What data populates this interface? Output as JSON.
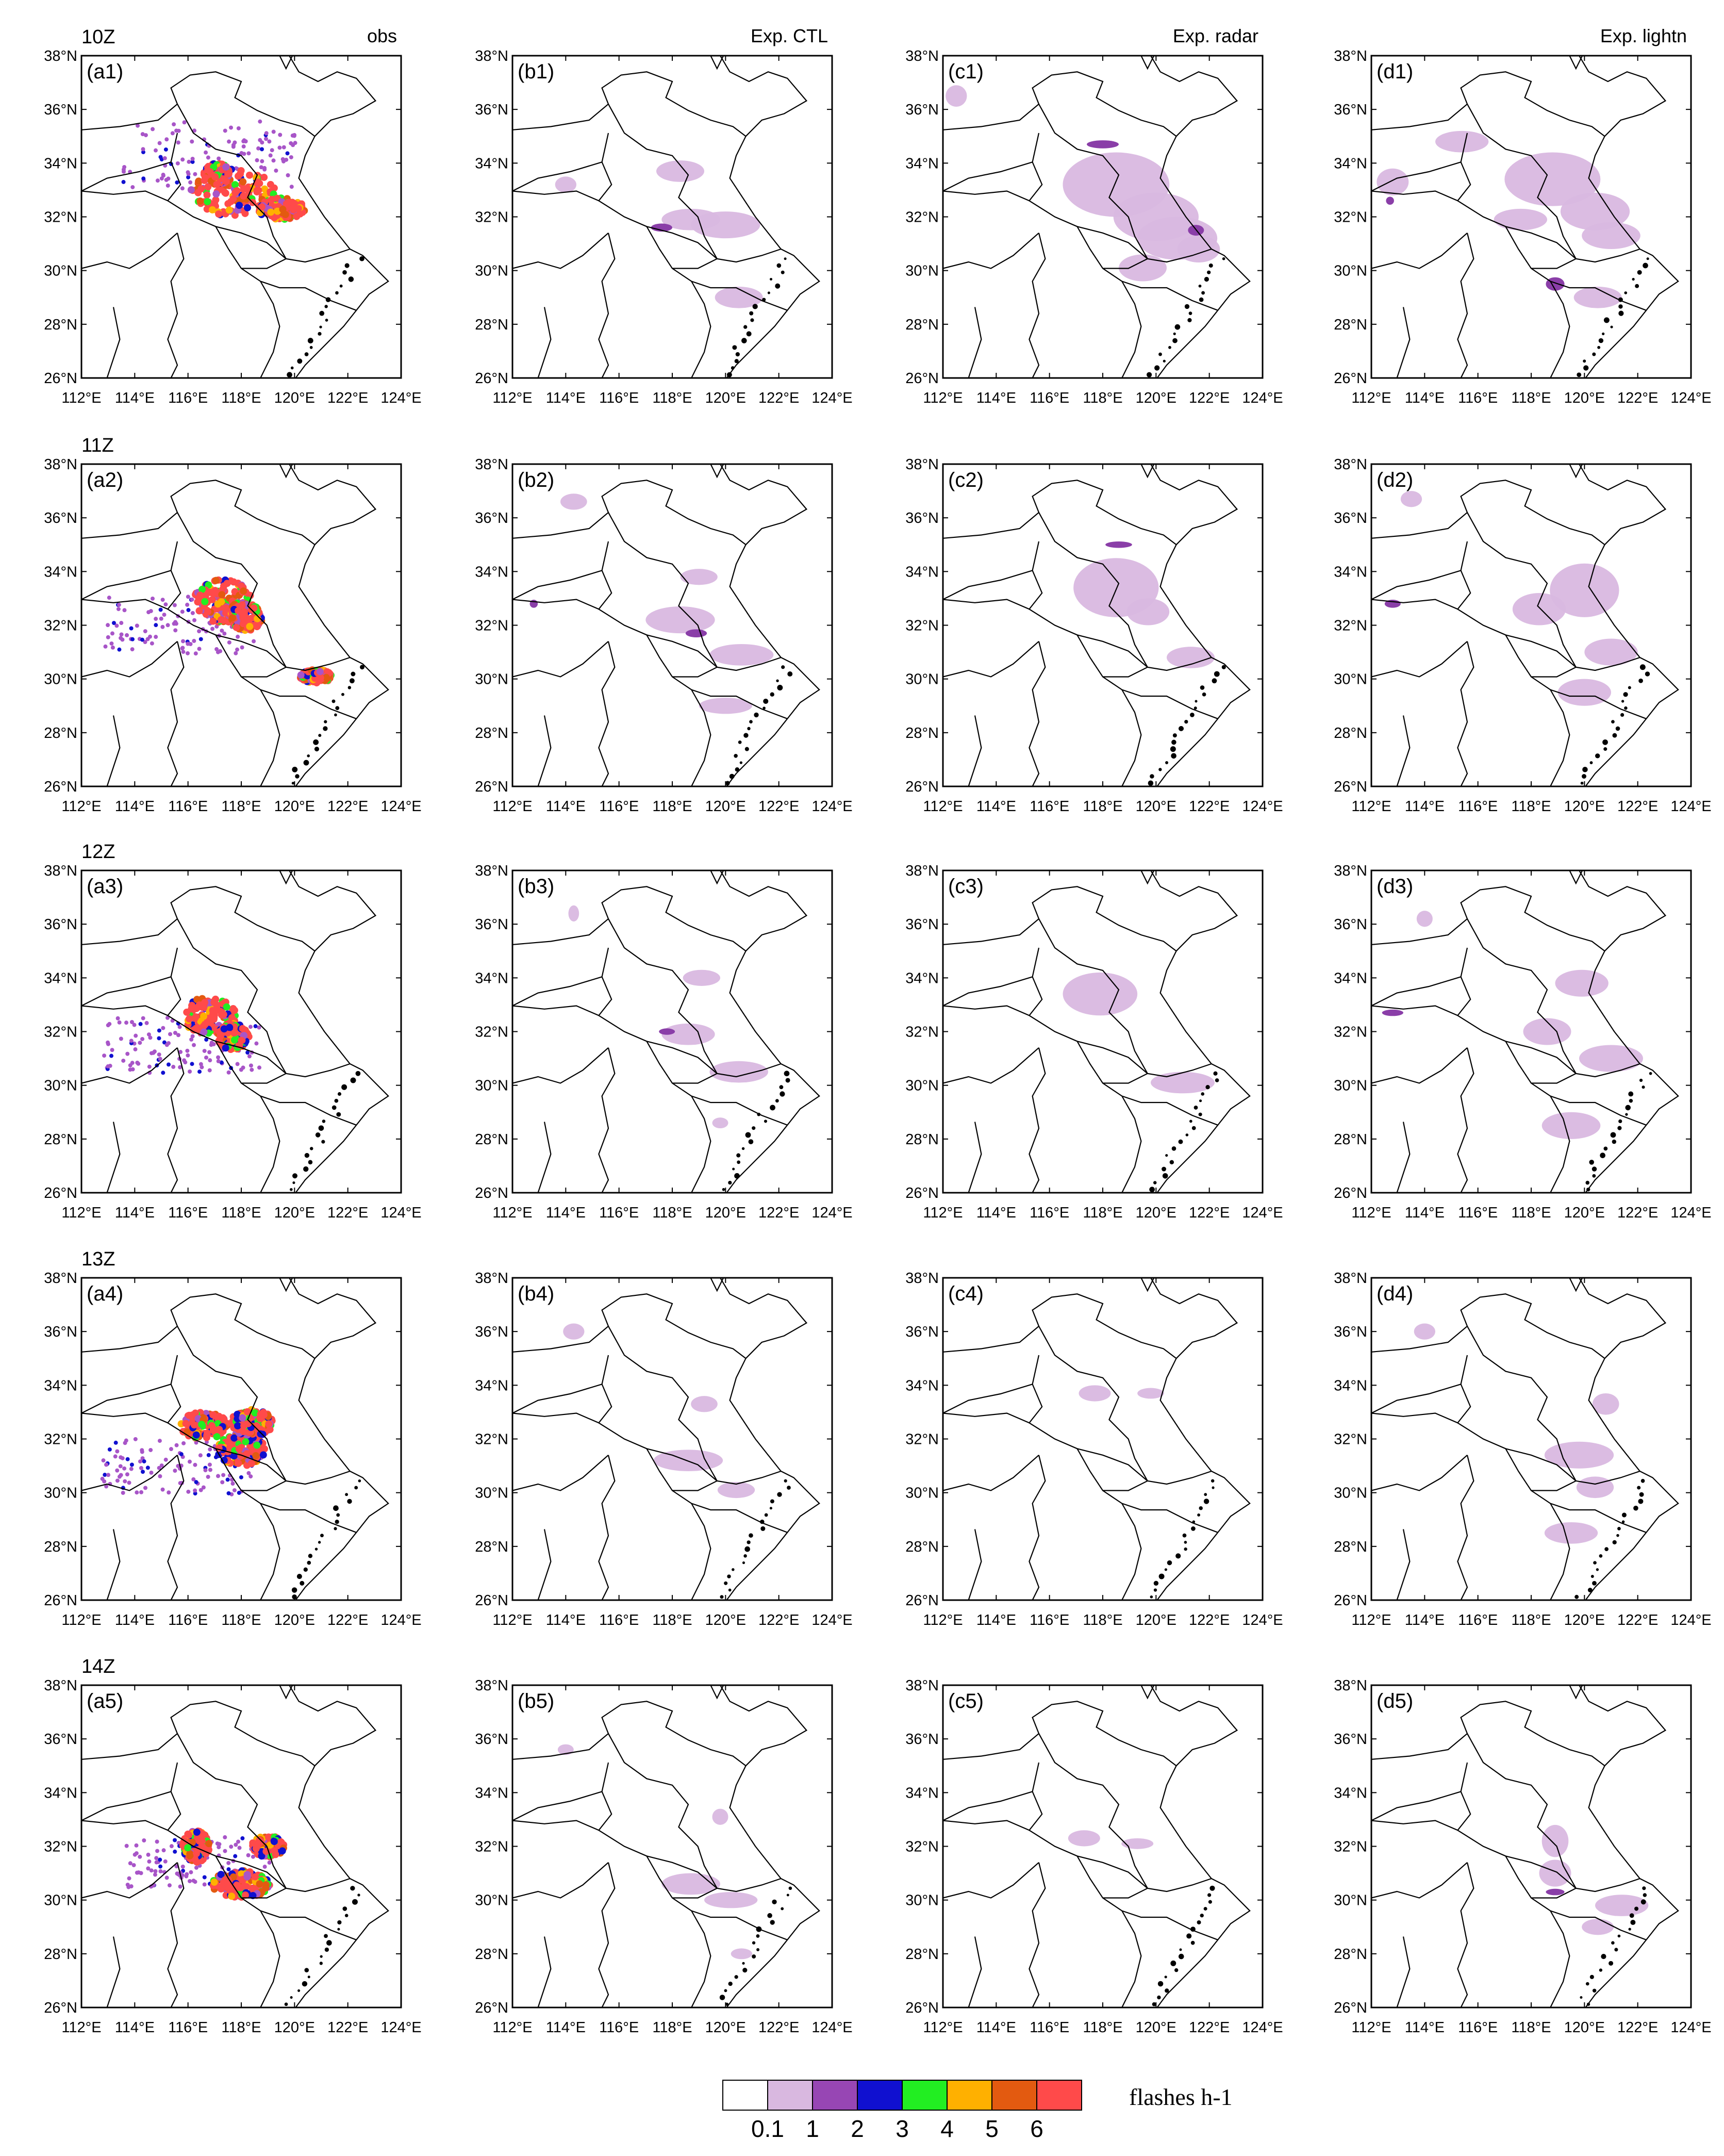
{
  "figure": {
    "row_times": [
      "10Z",
      "11Z",
      "12Z",
      "13Z",
      "14Z"
    ],
    "column_titles": [
      "obs",
      "Exp. CTL",
      "Exp. radar",
      "Exp. lightn"
    ],
    "panel_prefixes": [
      "a",
      "b",
      "c",
      "d"
    ],
    "lat_ticks": [
      "38°N",
      "36°N",
      "34°N",
      "32°N",
      "30°N",
      "28°N",
      "26°N"
    ],
    "lon_ticks": [
      "112°E",
      "114°E",
      "116°E",
      "118°E",
      "120°E",
      "122°E",
      "124°E"
    ],
    "map_extent": {
      "lon": [
        112,
        124
      ],
      "lat": [
        26,
        38
      ]
    }
  },
  "legend": {
    "title": "flashes h-1",
    "labels": [
      "0.1",
      "1",
      "2",
      "3",
      "4",
      "5",
      "6"
    ],
    "colors": [
      "#ffffff",
      "#d9b8e0",
      "#9746b4",
      "#1010d0",
      "#22ee22",
      "#ffb000",
      "#e35a10",
      "#ff4a4a"
    ]
  },
  "colors": {
    "obs_palette": [
      "#a855c8",
      "#1010d0",
      "#22ee22",
      "#ffb000",
      "#e35a10",
      "#ff4a4a"
    ],
    "model_light": "#d9b8e0",
    "model_dark": "#8a3ea8"
  },
  "panels": [
    {
      "label": "(a1)",
      "type": "obs",
      "clusters": [
        [
          117.7,
          32.9,
          1.6,
          0.9
        ],
        [
          119.5,
          32.3,
          0.9,
          0.4
        ],
        [
          117.1,
          33.6,
          0.5,
          0.4
        ]
      ],
      "scatter": [
        [
          115.5,
          34.3,
          6.5,
          4.2
        ]
      ]
    },
    {
      "label": "(b1)",
      "type": "model",
      "blobs": [
        [
          118.7,
          31.9,
          1.1,
          0.4
        ],
        [
          120.0,
          31.7,
          1.3,
          0.5
        ],
        [
          118.3,
          33.7,
          0.9,
          0.4
        ],
        [
          120.5,
          29.0,
          0.9,
          0.4
        ],
        [
          114.0,
          33.2,
          0.4,
          0.3
        ]
      ],
      "dark": [
        [
          117.6,
          31.6,
          0.4,
          0.15
        ]
      ]
    },
    {
      "label": "(c1)",
      "type": "model",
      "blobs": [
        [
          118.5,
          33.2,
          2.0,
          1.2
        ],
        [
          120.0,
          32.0,
          1.6,
          0.9
        ],
        [
          120.8,
          31.2,
          1.5,
          0.8
        ],
        [
          121.6,
          30.8,
          0.8,
          0.5
        ],
        [
          119.5,
          30.1,
          0.9,
          0.5
        ],
        [
          112.5,
          36.5,
          0.4,
          0.4
        ]
      ],
      "dark": [
        [
          118.0,
          34.7,
          0.6,
          0.15
        ],
        [
          121.5,
          31.5,
          0.3,
          0.2
        ]
      ]
    },
    {
      "label": "(d1)",
      "type": "model",
      "blobs": [
        [
          118.8,
          33.4,
          1.8,
          1.0
        ],
        [
          120.4,
          32.2,
          1.3,
          0.7
        ],
        [
          121.0,
          31.3,
          1.1,
          0.5
        ],
        [
          117.6,
          31.9,
          1.0,
          0.4
        ],
        [
          115.4,
          34.8,
          1.0,
          0.4
        ],
        [
          112.8,
          33.3,
          0.6,
          0.5
        ],
        [
          120.5,
          29.0,
          0.9,
          0.4
        ]
      ],
      "dark": [
        [
          118.9,
          29.5,
          0.35,
          0.25
        ],
        [
          112.7,
          32.6,
          0.15,
          0.15
        ]
      ]
    },
    {
      "label": "(a2)",
      "type": "obs",
      "clusters": [
        [
          117.3,
          32.9,
          1.1,
          0.8
        ],
        [
          118.2,
          32.3,
          0.6,
          0.5
        ],
        [
          120.8,
          30.1,
          0.6,
          0.25
        ]
      ],
      "scatter": [
        [
          114.6,
          32.0,
          5.7,
          3.6
        ]
      ]
    },
    {
      "label": "(b2)",
      "type": "model",
      "blobs": [
        [
          119.0,
          33.8,
          0.7,
          0.3
        ],
        [
          118.3,
          32.2,
          1.3,
          0.5
        ],
        [
          120.6,
          30.9,
          1.2,
          0.4
        ],
        [
          120.0,
          29.0,
          1.0,
          0.3
        ],
        [
          114.3,
          36.6,
          0.5,
          0.3
        ]
      ],
      "dark": [
        [
          112.8,
          32.8,
          0.15,
          0.15
        ],
        [
          118.9,
          31.7,
          0.4,
          0.15
        ]
      ]
    },
    {
      "label": "(c2)",
      "type": "model",
      "blobs": [
        [
          118.5,
          33.4,
          1.6,
          1.1
        ],
        [
          119.7,
          32.5,
          0.8,
          0.5
        ],
        [
          121.3,
          30.8,
          0.9,
          0.4
        ]
      ],
      "dark": [
        [
          118.6,
          35.0,
          0.5,
          0.12
        ]
      ]
    },
    {
      "label": "(d2)",
      "type": "model",
      "blobs": [
        [
          120.0,
          33.3,
          1.3,
          1.0
        ],
        [
          118.3,
          32.6,
          1.0,
          0.6
        ],
        [
          121.0,
          31.0,
          1.0,
          0.5
        ],
        [
          120.0,
          29.5,
          1.0,
          0.5
        ],
        [
          113.5,
          36.7,
          0.4,
          0.3
        ]
      ],
      "dark": [
        [
          112.8,
          32.8,
          0.3,
          0.15
        ]
      ]
    },
    {
      "label": "(a3)",
      "type": "obs",
      "clusters": [
        [
          116.8,
          32.6,
          1.0,
          0.7
        ],
        [
          117.7,
          31.8,
          0.6,
          0.5
        ]
      ],
      "scatter": [
        [
          114.5,
          31.5,
          6.0,
          3.5
        ]
      ]
    },
    {
      "label": "(b3)",
      "type": "model",
      "blobs": [
        [
          118.6,
          31.9,
          1.0,
          0.4
        ],
        [
          120.5,
          30.5,
          1.1,
          0.4
        ],
        [
          119.1,
          34.0,
          0.7,
          0.3
        ],
        [
          119.8,
          28.6,
          0.3,
          0.2
        ],
        [
          114.3,
          36.4,
          0.2,
          0.3
        ]
      ],
      "dark": [
        [
          117.8,
          32.0,
          0.3,
          0.12
        ]
      ]
    },
    {
      "label": "(c3)",
      "type": "model",
      "blobs": [
        [
          117.9,
          33.4,
          1.4,
          0.8
        ],
        [
          121.0,
          30.1,
          1.2,
          0.4
        ]
      ],
      "dark": []
    },
    {
      "label": "(d3)",
      "type": "model",
      "blobs": [
        [
          119.9,
          33.8,
          1.0,
          0.5
        ],
        [
          118.6,
          32.0,
          0.9,
          0.5
        ],
        [
          121.0,
          31.0,
          1.2,
          0.5
        ],
        [
          119.5,
          28.5,
          1.1,
          0.5
        ],
        [
          114.0,
          36.2,
          0.3,
          0.3
        ]
      ],
      "dark": [
        [
          112.8,
          32.7,
          0.4,
          0.12
        ]
      ]
    },
    {
      "label": "(a4)",
      "type": "obs",
      "clusters": [
        [
          116.6,
          32.5,
          0.9,
          0.5
        ],
        [
          118.0,
          31.6,
          0.9,
          0.6
        ],
        [
          118.4,
          32.6,
          0.8,
          0.5
        ]
      ],
      "scatter": [
        [
          114.5,
          31.0,
          5.8,
          3.6
        ]
      ]
    },
    {
      "label": "(b4)",
      "type": "model",
      "blobs": [
        [
          118.6,
          31.2,
          1.3,
          0.4
        ],
        [
          120.4,
          30.1,
          0.7,
          0.3
        ],
        [
          119.2,
          33.3,
          0.5,
          0.3
        ],
        [
          114.3,
          36.0,
          0.4,
          0.3
        ]
      ],
      "dark": []
    },
    {
      "label": "(c4)",
      "type": "model",
      "blobs": [
        [
          117.7,
          33.7,
          0.6,
          0.3
        ],
        [
          119.8,
          33.7,
          0.5,
          0.2
        ]
      ],
      "dark": []
    },
    {
      "label": "(d4)",
      "type": "model",
      "blobs": [
        [
          119.8,
          31.4,
          1.3,
          0.5
        ],
        [
          120.4,
          30.2,
          0.7,
          0.4
        ],
        [
          120.8,
          33.3,
          0.5,
          0.4
        ],
        [
          119.5,
          28.5,
          1.0,
          0.4
        ],
        [
          114.0,
          36.0,
          0.4,
          0.3
        ]
      ],
      "dark": []
    },
    {
      "label": "(a5)",
      "type": "obs",
      "clusters": [
        [
          116.3,
          32.0,
          0.5,
          0.6
        ],
        [
          118.0,
          30.6,
          1.1,
          0.5
        ],
        [
          119.0,
          32.0,
          0.6,
          0.4
        ]
      ],
      "scatter": [
        [
          115.3,
          31.4,
          5.4,
          3.2
        ]
      ]
    },
    {
      "label": "(b5)",
      "type": "model",
      "blobs": [
        [
          118.7,
          30.6,
          1.1,
          0.4
        ],
        [
          120.2,
          30.0,
          1.0,
          0.3
        ],
        [
          119.8,
          33.1,
          0.3,
          0.3
        ],
        [
          114.0,
          35.6,
          0.3,
          0.2
        ],
        [
          120.6,
          28.0,
          0.4,
          0.2
        ]
      ],
      "dark": []
    },
    {
      "label": "(c5)",
      "type": "model",
      "blobs": [
        [
          117.3,
          32.3,
          0.6,
          0.3
        ],
        [
          119.3,
          32.1,
          0.6,
          0.2
        ]
      ],
      "dark": []
    },
    {
      "label": "(d5)",
      "type": "model",
      "blobs": [
        [
          118.9,
          32.2,
          0.5,
          0.6
        ],
        [
          118.9,
          31.0,
          0.6,
          0.5
        ],
        [
          121.4,
          29.8,
          1.0,
          0.4
        ],
        [
          120.5,
          29.0,
          0.6,
          0.3
        ]
      ],
      "dark": [
        [
          118.9,
          30.3,
          0.35,
          0.12
        ]
      ]
    }
  ]
}
